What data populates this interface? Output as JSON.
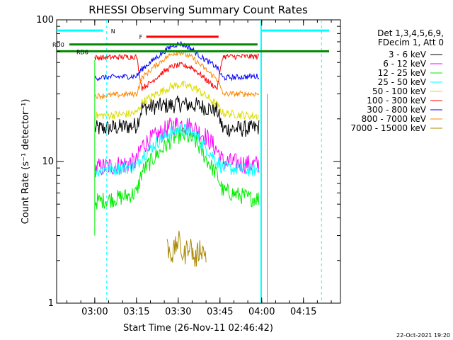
{
  "chart_data": {
    "type": "line",
    "title": "RHESSI Observing Summary Count Rates",
    "xlabel": "Start Time (26-Nov-11 02:46:42)",
    "ylabel": "Count Rate (s⁻¹ detector⁻¹)",
    "yscale": "log",
    "ylim": [
      1,
      100
    ],
    "xlim_minutes": [
      -13.7,
      88.3
    ],
    "x_ticks": [
      {
        "label": "03:00",
        "m": 0
      },
      {
        "label": "03:15",
        "m": 15
      },
      {
        "label": "03:30",
        "m": 30
      },
      {
        "label": "03:45",
        "m": 45
      },
      {
        "label": "04:00",
        "m": 60
      },
      {
        "label": "04:15",
        "m": 75
      }
    ],
    "y_ticks": [
      {
        "label": "1",
        "v": 1
      },
      {
        "label": "10",
        "v": 10
      },
      {
        "label": "100",
        "v": 100
      }
    ],
    "legend_header": [
      "Det 1,3,4,5,6,9,",
      "FDecim 1, Att 0"
    ],
    "series": [
      {
        "name": "3 - 6 keV",
        "color": "#000000",
        "points": [
          [
            0,
            17
          ],
          [
            10,
            17.5
          ],
          [
            15,
            18
          ],
          [
            17,
            24
          ],
          [
            22,
            24.5
          ],
          [
            28,
            25
          ],
          [
            30,
            25.5
          ],
          [
            36,
            25
          ],
          [
            40,
            24
          ],
          [
            44,
            23
          ],
          [
            46,
            17
          ],
          [
            56,
            17
          ],
          [
            59,
            17.5
          ]
        ],
        "noise": 0.06
      },
      {
        "name": "6 - 12 keV",
        "color": "#ff00ff",
        "points": [
          [
            0,
            9
          ],
          [
            10,
            9.5
          ],
          [
            15,
            10
          ],
          [
            17,
            13
          ],
          [
            22,
            15
          ],
          [
            28,
            18
          ],
          [
            32,
            18.5
          ],
          [
            36,
            17
          ],
          [
            40,
            15
          ],
          [
            44,
            12
          ],
          [
            46,
            10
          ],
          [
            56,
            9.5
          ],
          [
            59,
            9.5
          ]
        ],
        "noise": 0.07
      },
      {
        "name": "12 - 25 keV",
        "color": "#00ee00",
        "points": [
          [
            0,
            5.2
          ],
          [
            10,
            5.6
          ],
          [
            15,
            6
          ],
          [
            17,
            8.5
          ],
          [
            22,
            11
          ],
          [
            28,
            14.5
          ],
          [
            31,
            15.5
          ],
          [
            36,
            14
          ],
          [
            40,
            10.5
          ],
          [
            44,
            8
          ],
          [
            46,
            6.2
          ],
          [
            56,
            5.5
          ],
          [
            59,
            5.5
          ]
        ],
        "noise": 0.06
      },
      {
        "name": "25 - 50 keV",
        "color": "#00ffff",
        "points": [
          [
            0,
            8.7
          ],
          [
            10,
            9
          ],
          [
            15,
            9.3
          ],
          [
            17,
            11
          ],
          [
            22,
            13.5
          ],
          [
            28,
            16.5
          ],
          [
            31,
            17
          ],
          [
            36,
            15.5
          ],
          [
            40,
            12.5
          ],
          [
            44,
            10
          ],
          [
            46,
            9
          ],
          [
            56,
            8.7
          ],
          [
            59,
            8.7
          ]
        ],
        "noise": 0.05
      },
      {
        "name": "50 - 100 keV",
        "color": "#dddd00",
        "points": [
          [
            0,
            21
          ],
          [
            10,
            21.5
          ],
          [
            15,
            22
          ],
          [
            17,
            26
          ],
          [
            22,
            30
          ],
          [
            28,
            34
          ],
          [
            31,
            35
          ],
          [
            36,
            33
          ],
          [
            40,
            29
          ],
          [
            44,
            25
          ],
          [
            46,
            22
          ],
          [
            56,
            21
          ],
          [
            59,
            21
          ]
        ],
        "noise": 0.03
      },
      {
        "name": "100 - 300 keV",
        "color": "#ff0000",
        "points": [
          [
            0,
            54
          ],
          [
            15,
            55
          ],
          [
            17,
            33
          ],
          [
            20,
            36
          ],
          [
            24,
            42
          ],
          [
            28,
            47
          ],
          [
            31,
            48
          ],
          [
            35,
            46
          ],
          [
            38,
            41
          ],
          [
            42,
            35
          ],
          [
            44,
            33
          ],
          [
            46,
            55
          ],
          [
            59,
            55
          ]
        ],
        "noise": 0.02
      },
      {
        "name": "300 - 800 keV",
        "color": "#0000ff",
        "points": [
          [
            0,
            39
          ],
          [
            15,
            40
          ],
          [
            17,
            45
          ],
          [
            21,
            52
          ],
          [
            25,
            60
          ],
          [
            28,
            66
          ],
          [
            31,
            68
          ],
          [
            35,
            62
          ],
          [
            38,
            55
          ],
          [
            42,
            49
          ],
          [
            44,
            46
          ],
          [
            46,
            39
          ],
          [
            59,
            40
          ]
        ],
        "noise": 0.02
      },
      {
        "name": "800 - 7000 keV",
        "color": "#ff8800",
        "points": [
          [
            0,
            29
          ],
          [
            15,
            30
          ],
          [
            17,
            39
          ],
          [
            21,
            46
          ],
          [
            25,
            53
          ],
          [
            28,
            58
          ],
          [
            31,
            59
          ],
          [
            35,
            54
          ],
          [
            38,
            48
          ],
          [
            42,
            41
          ],
          [
            44,
            38
          ],
          [
            46,
            30
          ],
          [
            59,
            30
          ]
        ],
        "noise": 0.02
      },
      {
        "name": "7000 - 15000 keV",
        "color": "#aa8800",
        "points": [
          [
            26,
            2.5
          ],
          [
            28,
            2.2
          ],
          [
            30,
            2.8
          ],
          [
            32,
            2.1
          ],
          [
            34,
            2.7
          ],
          [
            36,
            2.0
          ],
          [
            38,
            2.5
          ],
          [
            40,
            2.2
          ]
        ],
        "noise": 0.08
      }
    ],
    "flags": [
      {
        "label": "N",
        "color": "#00ffff"
      },
      {
        "label": "F",
        "color": "#ff0000"
      },
      {
        "label": "RD0",
        "color": "#008800"
      },
      {
        "label": "RD6",
        "color": "#008800"
      }
    ],
    "footer_date": "22-Oct-2021 19:20"
  }
}
